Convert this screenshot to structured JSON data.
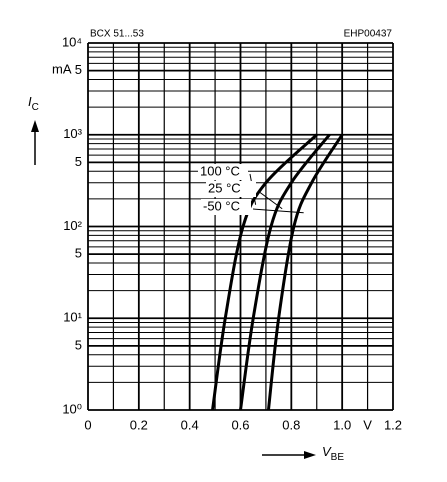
{
  "chart_data": {
    "type": "line",
    "title": "BCX 51...53",
    "code": "EHP00437",
    "y_unit": "mA",
    "x_unit": "V",
    "y_label": {
      "main": "I",
      "sub": "C"
    },
    "x_label": {
      "main": "V",
      "sub": "BE"
    },
    "log_y": true,
    "grid": true,
    "xlim": [
      0,
      1.2
    ],
    "ylim": [
      1,
      10000
    ],
    "xticks": [
      0,
      0.2,
      0.4,
      0.6,
      0.8,
      1.0,
      1.2
    ],
    "xminor": [
      0.1,
      0.3,
      0.5,
      0.7,
      0.9,
      1.1
    ],
    "yticks": [
      {
        "value": 1,
        "label": "10⁰"
      },
      5,
      {
        "value": 10,
        "label": "10¹"
      },
      {
        "value": 50,
        "label": "5"
      },
      {
        "value": 100,
        "label": "10²"
      },
      {
        "value": 500,
        "label": "5"
      },
      {
        "value": 1000,
        "label": "10³"
      },
      {
        "value": 5000,
        "label": "5"
      },
      {
        "value": 10000,
        "label": "10⁴"
      }
    ],
    "yminor": [
      2,
      3,
      4,
      6,
      7,
      8,
      9,
      20,
      30,
      40,
      60,
      70,
      80,
      90,
      200,
      300,
      400,
      600,
      700,
      800,
      900,
      2000,
      3000,
      4000,
      6000,
      7000,
      8000,
      9000
    ],
    "series": [
      {
        "name": "100 °C",
        "color": "#000000",
        "x": [
          0.49,
          0.54,
          0.61,
          0.7,
          0.9
        ],
        "values": [
          1,
          10,
          100,
          300,
          1000
        ]
      },
      {
        "name": "25 °C",
        "color": "#000000",
        "x": [
          0.6,
          0.65,
          0.72,
          0.8,
          0.95
        ],
        "values": [
          1,
          10,
          100,
          300,
          1000
        ]
      },
      {
        "name": "-50 °C",
        "color": "#000000",
        "x": [
          0.71,
          0.75,
          0.81,
          0.88,
          1.0
        ],
        "values": [
          1,
          10,
          100,
          300,
          1000
        ]
      }
    ]
  }
}
